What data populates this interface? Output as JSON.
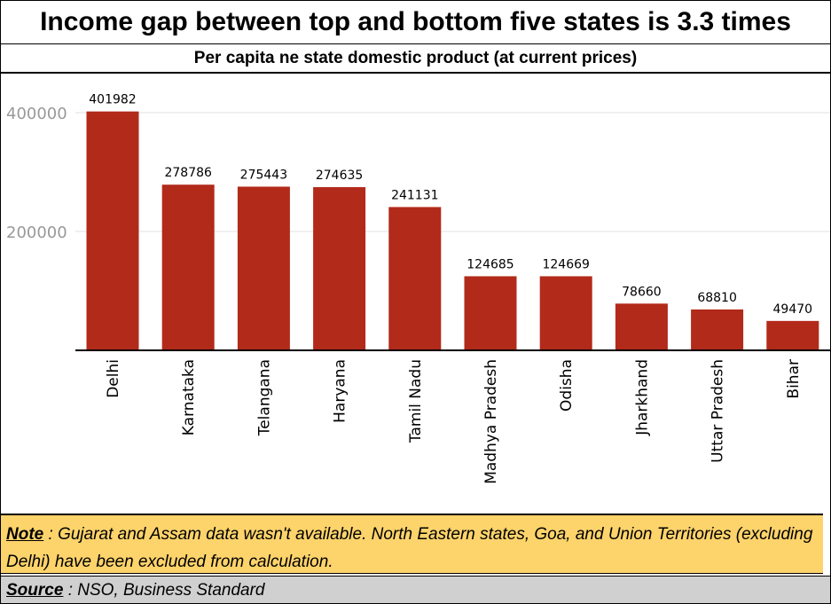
{
  "title": "Income gap between top and bottom five states is 3.3 times",
  "subtitle": "Per capita ne state domestic product (at current prices)",
  "note": {
    "label": "Note",
    "text": " : Gujarat and Assam data wasn't available.  North Eastern states, Goa, and Union Territories (excluding Delhi) have been excluded from calculation."
  },
  "source": {
    "label": "Source",
    "text": " : NSO, Business Standard"
  },
  "colors": {
    "bar": "#b22a1a",
    "grid": "#e0e0e0",
    "tick": "#999999"
  },
  "chart_data": {
    "type": "bar",
    "categories": [
      "Delhi",
      "Karnataka",
      "Telangana",
      "Haryana",
      "Tamil Nadu",
      "Madhya Pradesh",
      "Odisha",
      "Jharkhand",
      "Uttar Pradesh",
      "Bihar"
    ],
    "values": [
      401982,
      278786,
      275443,
      274635,
      241131,
      124685,
      124669,
      78660,
      68810,
      49470
    ],
    "data_labels": [
      "401982",
      "278786",
      "275443",
      "274635",
      "241131",
      "124685",
      "124669",
      "78660",
      "68810",
      "49470"
    ],
    "yticks": [
      200000,
      400000
    ],
    "ytick_labels": [
      "200000",
      "400000"
    ],
    "ylim": [
      0,
      450000
    ],
    "grid": true,
    "xlabel": "",
    "ylabel": ""
  }
}
